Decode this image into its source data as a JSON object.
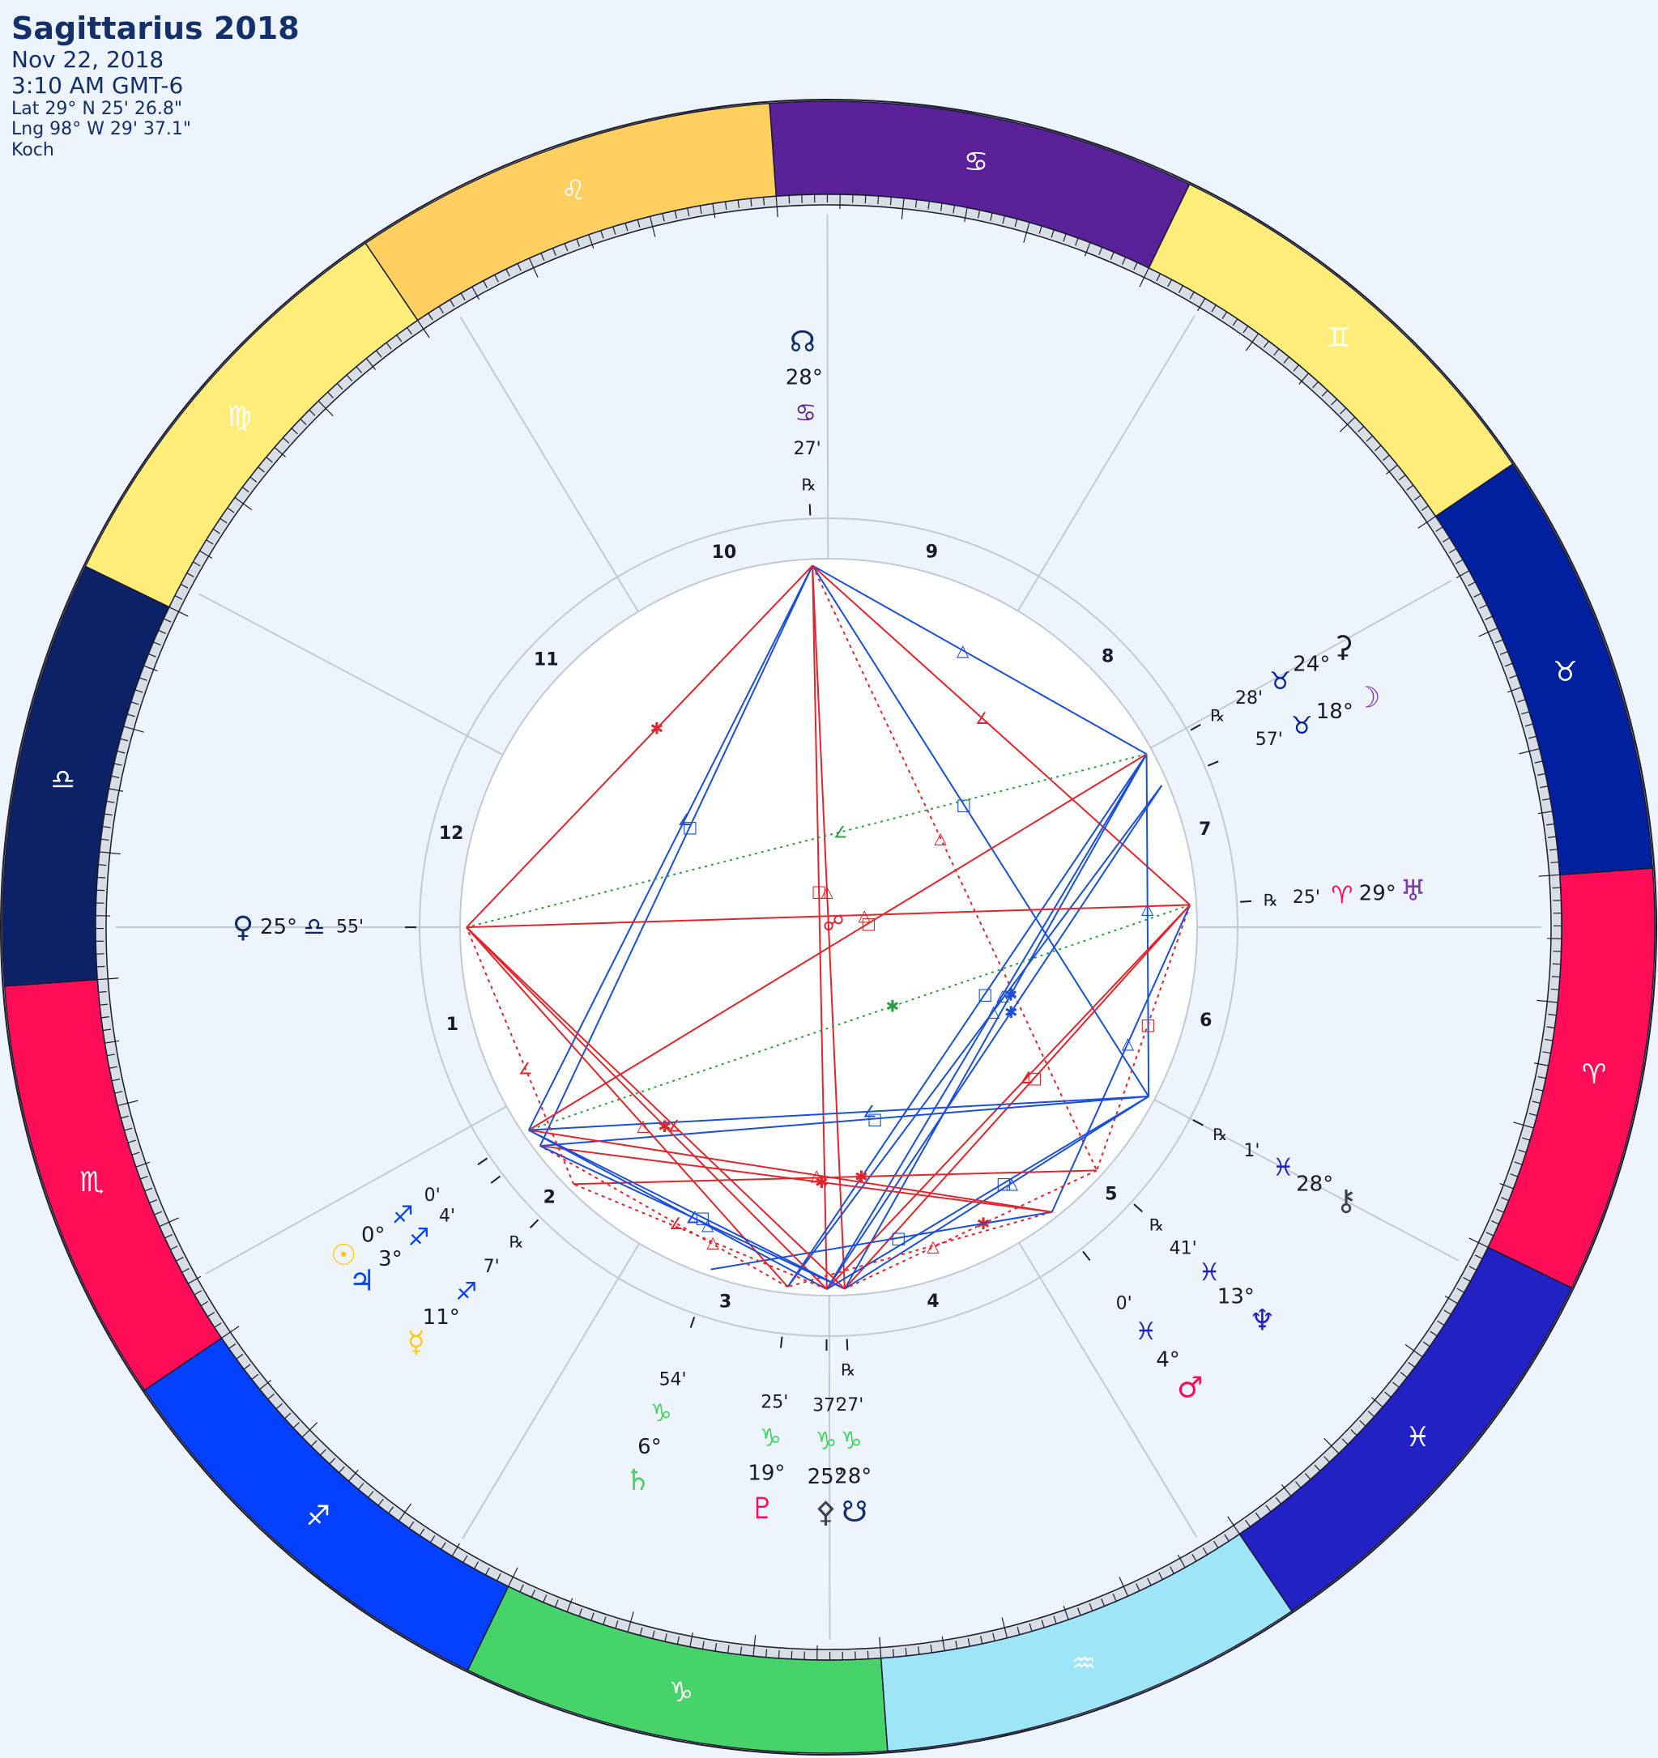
{
  "header": {
    "title": "Sagittarius 2018",
    "date": "Nov 22, 2018",
    "time": "3:10 AM GMT-6",
    "lat": "Lat 29° N 25' 26.8\"",
    "lng": "Lng 98° W 29' 37.1\"",
    "house_system": "Koch"
  },
  "ascendant_longitude": 205.9,
  "signs": [
    {
      "name": "aries",
      "glyph": "♈",
      "color": "#ff0d57",
      "glyph_color": "#ffffff"
    },
    {
      "name": "taurus",
      "glyph": "♉",
      "color": "#0020a0",
      "glyph_color": "#ffffff"
    },
    {
      "name": "gemini",
      "glyph": "♊",
      "color": "#ffed7a",
      "glyph_color": "#ffffff"
    },
    {
      "name": "cancer",
      "glyph": "♋",
      "color": "#5a2199",
      "glyph_color": "#ffffff"
    },
    {
      "name": "leo",
      "glyph": "♌",
      "color": "#ffd060",
      "glyph_color": "#ffffff"
    },
    {
      "name": "virgo",
      "glyph": "♍",
      "color": "#ffed7a",
      "glyph_color": "#ffffff"
    },
    {
      "name": "libra",
      "glyph": "♎",
      "color": "#0c2166",
      "glyph_color": "#ffffff"
    },
    {
      "name": "scorpio",
      "glyph": "♏",
      "color": "#ff0d57",
      "glyph_color": "#ffffff"
    },
    {
      "name": "sagittarius",
      "glyph": "♐",
      "color": "#0340ff",
      "glyph_color": "#ffffff"
    },
    {
      "name": "capricorn",
      "glyph": "♑",
      "color": "#46d36a",
      "glyph_color": "#ffffff"
    },
    {
      "name": "aquarius",
      "glyph": "♒",
      "color": "#9de5f7",
      "glyph_color": "#ffffff"
    },
    {
      "name": "pisces",
      "glyph": "♓",
      "color": "#2121c4",
      "glyph_color": "#ffffff"
    }
  ],
  "houses": [
    {
      "number": "1",
      "cusp": 205.9
    },
    {
      "number": "2",
      "cusp": 235.0
    },
    {
      "number": "3",
      "cusp": 265.0
    },
    {
      "number": "4",
      "cusp": 296.0
    },
    {
      "number": "5",
      "cusp": 327.0
    },
    {
      "number": "6",
      "cusp": 358.0
    },
    {
      "number": "7",
      "cusp": 25.9
    },
    {
      "number": "8",
      "cusp": 55.0
    },
    {
      "number": "9",
      "cusp": 85.0
    },
    {
      "number": "10",
      "cusp": 116.0
    },
    {
      "number": "11",
      "cusp": 147.0
    },
    {
      "number": "12",
      "cusp": 178.0
    }
  ],
  "planets": [
    {
      "name": "north-node",
      "glyph": "☊",
      "color": "#13306a",
      "deg": "28°",
      "sign_glyph": "♋",
      "sign_color": "#5a2199",
      "min": "27'",
      "retro": "℞",
      "lon": 118.45,
      "radial": true
    },
    {
      "name": "ceres",
      "glyph": "⚳",
      "color": "#1a1a2e",
      "deg": "24°",
      "sign_glyph": "♉",
      "sign_color": "#0020a0",
      "min": "28'",
      "retro": "℞",
      "lon": 54.47,
      "radial": false
    },
    {
      "name": "moon",
      "glyph": "☽",
      "color": "#7d3ab8",
      "deg": "18°",
      "sign_glyph": "♉",
      "sign_color": "#0020a0",
      "min": "57'",
      "retro": "",
      "lon": 48.95,
      "radial": false
    },
    {
      "name": "uranus",
      "glyph": "♅",
      "color": "#7d3ab8",
      "deg": "29°",
      "sign_glyph": "♈",
      "sign_color": "#ff0d57",
      "min": "25'",
      "retro": "℞",
      "lon": 29.42,
      "radial": false
    },
    {
      "name": "chiron",
      "glyph": "⚷",
      "color": "#404050",
      "deg": "28°",
      "sign_glyph": "♓",
      "sign_color": "#2121c4",
      "min": "1'",
      "retro": "℞",
      "lon": 358.02,
      "radial": false
    },
    {
      "name": "neptune",
      "glyph": "♆",
      "color": "#2121c4",
      "deg": "13°",
      "sign_glyph": "♓",
      "sign_color": "#2121c4",
      "min": "41'",
      "retro": "℞",
      "lon": 343.68,
      "radial": false
    },
    {
      "name": "mars",
      "glyph": "♂",
      "color": "#ff0d57",
      "deg": "4°",
      "sign_glyph": "♓",
      "sign_color": "#2121c4",
      "min": "0'",
      "retro": "",
      "lon": 334.0,
      "radial": false
    },
    {
      "name": "pluto",
      "glyph": "♇",
      "color": "#ff0d57",
      "deg": "19°",
      "sign_glyph": "♑",
      "sign_color": "#46d36a",
      "min": "25'",
      "retro": "",
      "lon": 289.42,
      "radial": true
    },
    {
      "name": "pallas",
      "glyph": "⚴",
      "color": "#404050",
      "deg": "25°",
      "sign_glyph": "♑",
      "sign_color": "#46d36a",
      "min": "37'",
      "retro": "",
      "lon": 295.62,
      "radial": true
    },
    {
      "name": "south-node",
      "glyph": "☋",
      "color": "#13306a",
      "deg": "28°",
      "sign_glyph": "♑",
      "sign_color": "#46d36a",
      "min": "27'",
      "retro": "℞",
      "lon": 298.45,
      "radial": true
    },
    {
      "name": "saturn",
      "glyph": "♄",
      "color": "#46d36a",
      "deg": "6°",
      "sign_glyph": "♑",
      "sign_color": "#46d36a",
      "min": "54'",
      "retro": "",
      "lon": 276.9,
      "radial": true
    },
    {
      "name": "sun",
      "glyph": "☉",
      "color": "#ffc81a",
      "deg": "0°",
      "sign_glyph": "♐",
      "sign_color": "#0340ff",
      "min": "0'",
      "retro": "",
      "lon": 240.0,
      "radial": false
    },
    {
      "name": "jupiter",
      "glyph": "♃",
      "color": "#0340ff",
      "deg": "3°",
      "sign_glyph": "♐",
      "sign_color": "#0340ff",
      "min": "4'",
      "retro": "",
      "lon": 243.07,
      "radial": false
    },
    {
      "name": "mercury",
      "glyph": "☿",
      "color": "#ffc81a",
      "deg": "11°",
      "sign_glyph": "♐",
      "sign_color": "#0340ff",
      "min": "7'",
      "retro": "℞",
      "lon": 251.12,
      "radial": false
    },
    {
      "name": "venus",
      "glyph": "♀",
      "color": "#13306a",
      "deg": "25°",
      "sign_glyph": "♎",
      "sign_color": "#0c2166",
      "min": "55'",
      "retro": "",
      "lon": 205.92,
      "radial": false
    }
  ],
  "aspect_symbols": [
    {
      "glyph": "□",
      "color": "#e0262c"
    },
    {
      "glyph": "△",
      "color": "#1b4fd8"
    },
    {
      "glyph": "✱",
      "color": "#1b4fd8"
    },
    {
      "glyph": "∠",
      "color": "#e0262c"
    },
    {
      "glyph": "⚻",
      "color": "#2e9d44"
    },
    {
      "glyph": "☍",
      "color": "#e0262c"
    }
  ],
  "colors": {
    "background": "#eef4fb",
    "square": "#e0262c",
    "trine": "#1b4fd8",
    "minor": "#2e9d44",
    "house_line": "#c3c9d4"
  }
}
